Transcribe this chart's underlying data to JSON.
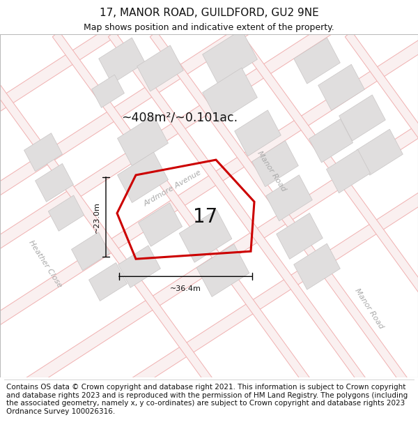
{
  "title": "17, MANOR ROAD, GUILDFORD, GU2 9NE",
  "subtitle": "Map shows position and indicative extent of the property.",
  "footer": "Contains OS data © Crown copyright and database right 2021. This information is subject to Crown copyright and database rights 2023 and is reproduced with the permission of HM Land Registry. The polygons (including the associated geometry, namely x, y co-ordinates) are subject to Crown copyright and database rights 2023 Ordnance Survey 100026316.",
  "area_text": "~408m²/~0.101ac.",
  "number_text": "17",
  "width_label": "~36.4m",
  "height_label": "~23.0m",
  "road1_label": "Ardmore Avenue",
  "road2_label": "Manor Road",
  "road3_label": "Manor Road",
  "road4_label": "Heather Close",
  "parcel_color": "#cc0000",
  "road_line_color": "#f0b0b0",
  "road_fill_color": "#faf0f0",
  "building_color": "#e0dede",
  "building_edge": "#c8c4c4",
  "street_label_color": "#aaaaaa",
  "map_bg": "#ffffff",
  "title_fontsize": 11,
  "subtitle_fontsize": 9,
  "footer_fontsize": 7.5,
  "parcel_pts_x": [
    195,
    310,
    365,
    360,
    195,
    168
  ],
  "parcel_pts_y": [
    265,
    285,
    230,
    165,
    155,
    215
  ]
}
